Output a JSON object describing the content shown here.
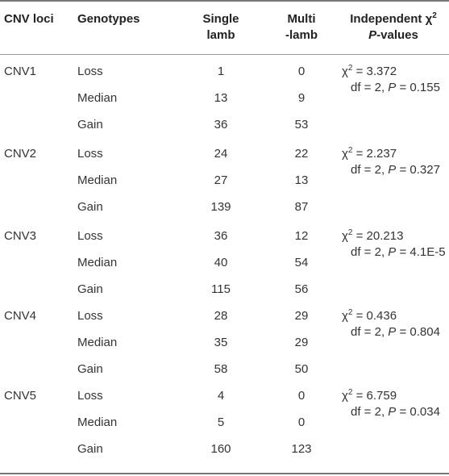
{
  "headers": {
    "loci": "CNV loci",
    "genotypes": "Genotypes",
    "single_l1": "Single",
    "single_l2": "lamb",
    "multi_l1": "Multi",
    "multi_l2": "-lamb",
    "indep_l1": "Independent χ",
    "indep_sup": "2",
    "indep_l2_italic": "P",
    "indep_l2_rest": "-values"
  },
  "groups": [
    {
      "locus": "CNV1",
      "rows": [
        {
          "genotype": "Loss",
          "single": "1",
          "multi": "0"
        },
        {
          "genotype": "Median",
          "single": "13",
          "multi": "9"
        },
        {
          "genotype": "Gain",
          "single": "36",
          "multi": "53"
        }
      ],
      "chi_prefix": "χ",
      "chi_sup": "2",
      "chi_value": " = 3.372",
      "df_text": "df = 2, ",
      "p_sym": "P",
      "p_value": " = 0.155"
    },
    {
      "locus": "CNV2",
      "rows": [
        {
          "genotype": "Loss",
          "single": "24",
          "multi": "22"
        },
        {
          "genotype": "Median",
          "single": "27",
          "multi": "13"
        },
        {
          "genotype": "Gain",
          "single": "139",
          "multi": "87"
        }
      ],
      "chi_prefix": "χ",
      "chi_sup": "2",
      "chi_value": " = 2.237",
      "df_text": "df = 2, ",
      "p_sym": "P",
      "p_value": " = 0.327"
    },
    {
      "locus": "CNV3",
      "rows": [
        {
          "genotype": "Loss",
          "single": "36",
          "multi": "12"
        },
        {
          "genotype": "Median",
          "single": "40",
          "multi": "54"
        },
        {
          "genotype": "Gain",
          "single": "115",
          "multi": "56"
        }
      ],
      "chi_prefix": "χ",
      "chi_sup": "2",
      "chi_value": " = 20.213",
      "df_text": "df = 2, ",
      "p_sym": "P",
      "p_value": " = 4.1E-5"
    },
    {
      "locus": "CNV4",
      "rows": [
        {
          "genotype": "Loss",
          "single": "28",
          "multi": "29"
        },
        {
          "genotype": "Median",
          "single": "35",
          "multi": "29"
        },
        {
          "genotype": "Gain",
          "single": "58",
          "multi": "50"
        }
      ],
      "chi_prefix": "χ",
      "chi_sup": "2",
      "chi_value": " = 0.436",
      "df_text": "df = 2, ",
      "p_sym": "P",
      "p_value": " = 0.804"
    },
    {
      "locus": "CNV5",
      "rows": [
        {
          "genotype": "Loss",
          "single": "4",
          "multi": "0"
        },
        {
          "genotype": "Median",
          "single": "5",
          "multi": "0"
        },
        {
          "genotype": "Gain",
          "single": "160",
          "multi": "123"
        }
      ],
      "chi_prefix": "χ",
      "chi_sup": "2",
      "chi_value": " = 6.759",
      "df_text": "df = 2, ",
      "p_sym": "P",
      "p_value": " = 0.034"
    }
  ]
}
